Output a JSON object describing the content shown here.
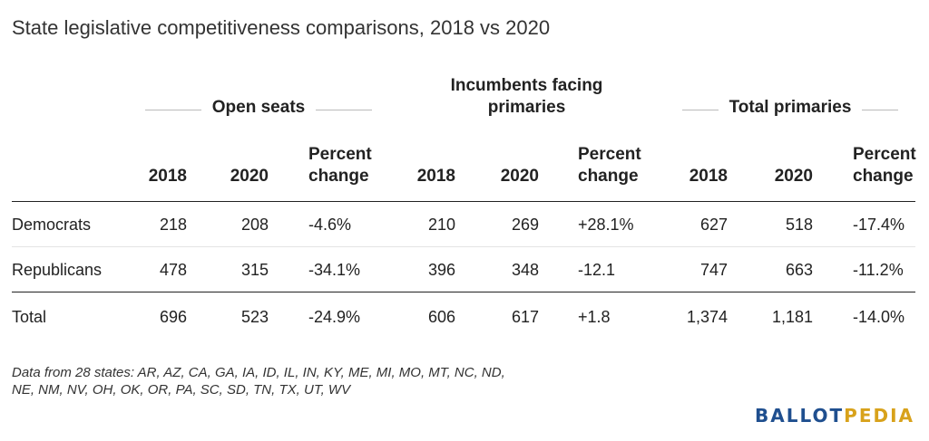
{
  "title": "State legislative competitiveness comparisons, 2018 vs 2020",
  "groups": {
    "open_seats": "Open seats",
    "incumbents_line1": "Incumbents facing",
    "incumbents_line2": "primaries",
    "total_primaries": "Total primaries"
  },
  "columns": {
    "y2018": "2018",
    "y2020": "2020",
    "pct_line1": "Percent",
    "pct_line2": "change"
  },
  "rows": [
    {
      "label": "Democrats",
      "open": [
        "218",
        "208",
        "-4.6%"
      ],
      "inc": [
        "210",
        "269",
        "+28.1%"
      ],
      "tot": [
        "627",
        "518",
        "-17.4%"
      ]
    },
    {
      "label": "Republicans",
      "open": [
        "478",
        "315",
        "-34.1%"
      ],
      "inc": [
        "396",
        "348",
        "-12.1"
      ],
      "tot": [
        "747",
        "663",
        "-11.2%"
      ]
    },
    {
      "label": "Total",
      "open": [
        "696",
        "523",
        "-24.9%"
      ],
      "inc": [
        "606",
        "617",
        "+1.8"
      ],
      "tot": [
        "1,374",
        "1,181",
        "-14.0%"
      ]
    }
  ],
  "note_line1": "Data from 28 states: AR, AZ, CA, GA, IA, ID, IL, IN, KY, ME, MI, MO, MT, NC, ND,",
  "note_line2": "NE, NM, NV, OH, OK, OR, PA, SC, SD, TN, TX, UT, WV",
  "logo": {
    "part1": "BALLOT",
    "part2": "PEDIA"
  },
  "colors": {
    "logo_blue": "#1f4f8f",
    "logo_gold": "#d8a21b"
  }
}
